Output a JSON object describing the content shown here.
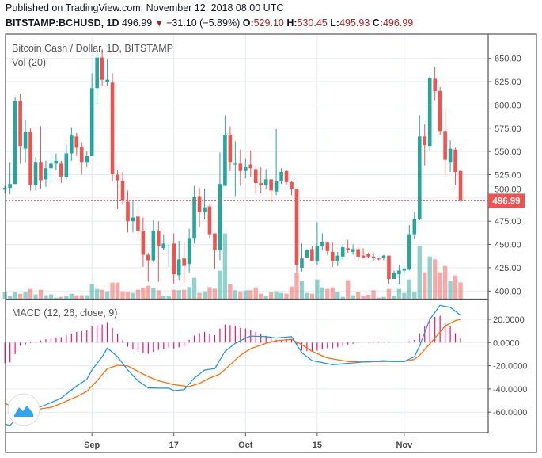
{
  "header": {
    "published": "Published on TradingView.com, November 12, 2018 08:00 UTC",
    "symbol": "BITSTAMP:BCHUSD, 1D",
    "last": "496.99",
    "change": "−31.10 (−5.89%)",
    "o_label": "O:",
    "o_value": "529.10",
    "h_label": "H:",
    "h_value": "530.45",
    "l_label": "L:",
    "l_value": "495.93",
    "c_label": "C:",
    "c_value": "496.99",
    "direction_icon": "triangle-down-icon"
  },
  "legend": {
    "title": "Bitcoin Cash / Dollar, 1D, BITSTAMP",
    "volume": "Vol (20)",
    "macd": "MACD (12, 26, close, 9)"
  },
  "last_price_label": "496.99",
  "colors": {
    "up": "#26a69a",
    "down": "#ef5350",
    "macd": "#2196f3",
    "signal": "#ff6d00",
    "histogram": "#ff0a68",
    "grid": "#e3ebf3"
  },
  "logo": "tradingview-logo-icon",
  "chart_data": [
    {
      "type": "candlestick",
      "title": "Bitcoin Cash / Dollar, 1D, BITSTAMP",
      "ylim": [
        395,
        660
      ],
      "y_ticks": [
        "400.00",
        "425.00",
        "450.00",
        "475.00",
        "500.00",
        "525.00",
        "550.00",
        "575.00",
        "600.00",
        "625.00",
        "650.00"
      ],
      "x_ticks": [
        {
          "date": "2018-09-01",
          "label": "Sep"
        },
        {
          "date": "2018-09-17",
          "label": "17"
        },
        {
          "date": "2018-10-01",
          "label": "Oct"
        },
        {
          "date": "2018-10-15",
          "label": "15"
        },
        {
          "date": "2018-11-01",
          "label": "Nov"
        }
      ],
      "grid": true,
      "columns": [
        "date",
        "open",
        "high",
        "low",
        "close",
        "volume_relative"
      ],
      "candles": [
        [
          "2018-08-15",
          509,
          513,
          505,
          511,
          24
        ],
        [
          "2018-08-16",
          511,
          538,
          504,
          515,
          10
        ],
        [
          "2018-08-17",
          515,
          608,
          515,
          604,
          25
        ],
        [
          "2018-08-18",
          604,
          612,
          537,
          556,
          19
        ],
        [
          "2018-08-19",
          553,
          584,
          538,
          571,
          25
        ],
        [
          "2018-08-20",
          571,
          575,
          508,
          514,
          37
        ],
        [
          "2018-08-21",
          514,
          544,
          508,
          538,
          16
        ],
        [
          "2018-08-22",
          538,
          577,
          510,
          519,
          34
        ],
        [
          "2018-08-23",
          520,
          540,
          512,
          532,
          13
        ],
        [
          "2018-08-24",
          532,
          547,
          517,
          537,
          16
        ],
        [
          "2018-08-25",
          537,
          548,
          530,
          540,
          4
        ],
        [
          "2018-08-26",
          537,
          540,
          516,
          523,
          7
        ],
        [
          "2018-08-27",
          522,
          557,
          520,
          548,
          11
        ],
        [
          "2018-08-28",
          548,
          576,
          540,
          567,
          19
        ],
        [
          "2018-08-29",
          566,
          570,
          545,
          554,
          13
        ],
        [
          "2018-08-30",
          555,
          560,
          525,
          538,
          13
        ],
        [
          "2018-08-31",
          538,
          550,
          533,
          545,
          13
        ],
        [
          "2018-09-01",
          545,
          634,
          545,
          618,
          55
        ],
        [
          "2018-09-02",
          618,
          660,
          601,
          651,
          37
        ],
        [
          "2018-09-03",
          651,
          660,
          620,
          627,
          34
        ],
        [
          "2018-09-04",
          625,
          649,
          620,
          627,
          28
        ],
        [
          "2018-09-05",
          624,
          634,
          518,
          526,
          61
        ],
        [
          "2018-09-06",
          525,
          530,
          488,
          519,
          61
        ],
        [
          "2018-09-07",
          518,
          528,
          493,
          497,
          28
        ],
        [
          "2018-09-08",
          496,
          508,
          463,
          475,
          27
        ],
        [
          "2018-09-09",
          475,
          497,
          463,
          479,
          22
        ],
        [
          "2018-09-10",
          480,
          489,
          457,
          465,
          34
        ],
        [
          "2018-09-11",
          465,
          479,
          426,
          439,
          42
        ],
        [
          "2018-09-12",
          439,
          441,
          410,
          433,
          49
        ],
        [
          "2018-09-13",
          433,
          476,
          431,
          465,
          40
        ],
        [
          "2018-09-14",
          464,
          475,
          410,
          448,
          32
        ],
        [
          "2018-09-15",
          446,
          461,
          444,
          451,
          9
        ],
        [
          "2018-09-16",
          448,
          450,
          426,
          449,
          11
        ],
        [
          "2018-09-17",
          451,
          462,
          408,
          418,
          34
        ],
        [
          "2018-09-18",
          417,
          454,
          412,
          434,
          32
        ],
        [
          "2018-09-19",
          435,
          453,
          409,
          427,
          34
        ],
        [
          "2018-09-20",
          429,
          467,
          420,
          457,
          44
        ],
        [
          "2018-09-21",
          457,
          513,
          451,
          501,
          79
        ],
        [
          "2018-09-22",
          502,
          511,
          469,
          485,
          22
        ],
        [
          "2018-09-23",
          485,
          510,
          477,
          490,
          28
        ],
        [
          "2018-09-24",
          491,
          493,
          457,
          461,
          44
        ],
        [
          "2018-09-25",
          462,
          462,
          424,
          444,
          38
        ],
        [
          "2018-09-26",
          444,
          549,
          433,
          515,
          106
        ],
        [
          "2018-09-27",
          513,
          589,
          513,
          568,
          247
        ],
        [
          "2018-09-28",
          568,
          577,
          529,
          538,
          55
        ],
        [
          "2018-09-29",
          536,
          561,
          502,
          537,
          32
        ],
        [
          "2018-09-30",
          537,
          552,
          513,
          529,
          28
        ],
        [
          "2018-10-01",
          529,
          542,
          521,
          533,
          31
        ],
        [
          "2018-10-02",
          536,
          551,
          522,
          532,
          32
        ],
        [
          "2018-10-03",
          531,
          533,
          505,
          516,
          43
        ],
        [
          "2018-10-04",
          516,
          533,
          505,
          514,
          19
        ],
        [
          "2018-10-05",
          514,
          531,
          509,
          520,
          10
        ],
        [
          "2018-10-06",
          520,
          520,
          495,
          508,
          25
        ],
        [
          "2018-10-07",
          507,
          574,
          503,
          518,
          28
        ],
        [
          "2018-10-08",
          518,
          532,
          515,
          528,
          22
        ],
        [
          "2018-10-09",
          529,
          530,
          514,
          517,
          19
        ],
        [
          "2018-10-10",
          517,
          518,
          503,
          510,
          46
        ],
        [
          "2018-10-11",
          510,
          510,
          420,
          428,
          97
        ],
        [
          "2018-10-12",
          425,
          451,
          421,
          435,
          67
        ],
        [
          "2018-10-13",
          436,
          445,
          436,
          444,
          22
        ],
        [
          "2018-10-14",
          445,
          448,
          432,
          432,
          19
        ],
        [
          "2018-10-15",
          432,
          474,
          428,
          448,
          73
        ],
        [
          "2018-10-16",
          448,
          462,
          444,
          453,
          43
        ],
        [
          "2018-10-17",
          452,
          453,
          439,
          443,
          37
        ],
        [
          "2018-10-18",
          442,
          452,
          426,
          432,
          43
        ],
        [
          "2018-10-19",
          432,
          442,
          427,
          438,
          25
        ],
        [
          "2018-10-20",
          437,
          450,
          434,
          447,
          7
        ],
        [
          "2018-10-21",
          446,
          455,
          441,
          444,
          70
        ],
        [
          "2018-10-22",
          442,
          450,
          439,
          445,
          13
        ],
        [
          "2018-10-23",
          445,
          447,
          433,
          437,
          25
        ],
        [
          "2018-10-24",
          438,
          446,
          435,
          436,
          10
        ],
        [
          "2018-10-25",
          440,
          441,
          435,
          437,
          15
        ],
        [
          "2018-10-26",
          437,
          441,
          432,
          436,
          32
        ],
        [
          "2018-10-27",
          435,
          436,
          433,
          434,
          4
        ],
        [
          "2018-10-28",
          436,
          439,
          433,
          438,
          7
        ],
        [
          "2018-10-29",
          438,
          438,
          408,
          413,
          37
        ],
        [
          "2018-10-30",
          413,
          422,
          413,
          420,
          10
        ],
        [
          "2018-10-31",
          418,
          428,
          407,
          422,
          37
        ],
        [
          "2018-11-01",
          422,
          425,
          420,
          424,
          22
        ],
        [
          "2018-11-02",
          423,
          471,
          422,
          461,
          73
        ],
        [
          "2018-11-03",
          461,
          485,
          456,
          477,
          25
        ],
        [
          "2018-11-04",
          477,
          589,
          476,
          566,
          199
        ],
        [
          "2018-11-05",
          566,
          579,
          535,
          557,
          100
        ],
        [
          "2018-11-06",
          556,
          631,
          551,
          629,
          160
        ],
        [
          "2018-11-07",
          628,
          641,
          605,
          615,
          149
        ],
        [
          "2018-11-08",
          615,
          619,
          568,
          572,
          100
        ],
        [
          "2018-11-09",
          572,
          595,
          523,
          541,
          124
        ],
        [
          "2018-11-10",
          538,
          562,
          528,
          553,
          67
        ],
        [
          "2018-11-11",
          552,
          554,
          514,
          528,
          88
        ],
        [
          "2018-11-12",
          529.1,
          530.45,
          495.93,
          496.99,
          62
        ]
      ],
      "last_price": 496.99
    },
    {
      "type": "line",
      "title": "MACD (12, 26, close, 9)",
      "ylim": [
        -75,
        35
      ],
      "y_ticks": [
        "20.0000",
        "0.0000",
        "-20.0000",
        "-40.0000",
        "-60.0000"
      ],
      "grid": true,
      "macd": [
        [
          "2018-08-15",
          -70.2
        ],
        [
          "2018-08-16",
          -71.5
        ],
        [
          "2018-08-18",
          -61
        ],
        [
          "2018-08-21",
          -57
        ],
        [
          "2018-08-23",
          -53.6
        ],
        [
          "2018-08-25",
          -49.9
        ],
        [
          "2018-08-26",
          -47.8
        ],
        [
          "2018-08-29",
          -37.5
        ],
        [
          "2018-08-31",
          -31.7
        ],
        [
          "2018-09-01",
          -23.7
        ],
        [
          "2018-09-03",
          -12.2
        ],
        [
          "2018-09-04",
          -4.8
        ],
        [
          "2018-09-06",
          -12.2
        ],
        [
          "2018-09-08",
          -23.7
        ],
        [
          "2018-09-10",
          -32.9
        ],
        [
          "2018-09-12",
          -39.1
        ],
        [
          "2018-09-14",
          -39.3
        ],
        [
          "2018-09-16",
          -39.3
        ],
        [
          "2018-09-17",
          -41.4
        ],
        [
          "2018-09-19",
          -40.7
        ],
        [
          "2018-09-21",
          -30.6
        ],
        [
          "2018-09-23",
          -23.7
        ],
        [
          "2018-09-25",
          -22.5
        ],
        [
          "2018-09-27",
          -7.6
        ],
        [
          "2018-09-29",
          -0.7
        ],
        [
          "2018-10-01",
          3.9
        ],
        [
          "2018-10-02",
          5.5
        ],
        [
          "2018-10-05",
          5.1
        ],
        [
          "2018-10-07",
          3.9
        ],
        [
          "2018-10-10",
          5.1
        ],
        [
          "2018-10-12",
          -8.7
        ],
        [
          "2018-10-14",
          -15.6
        ],
        [
          "2018-10-16",
          -17.3
        ],
        [
          "2018-10-18",
          -19.1
        ],
        [
          "2018-10-21",
          -17.9
        ],
        [
          "2018-10-24",
          -16.8
        ],
        [
          "2018-10-28",
          -15.6
        ],
        [
          "2018-10-30",
          -16.3
        ],
        [
          "2018-11-01",
          -16.3
        ],
        [
          "2018-11-03",
          -12.2
        ],
        [
          "2018-11-04",
          -3
        ],
        [
          "2018-11-06",
          20
        ],
        [
          "2018-11-08",
          32
        ],
        [
          "2018-11-10",
          30.4
        ],
        [
          "2018-11-12",
          23.5
        ]
      ],
      "signal": [
        [
          "2018-08-15",
          -52.4
        ],
        [
          "2018-08-18",
          -58.2
        ],
        [
          "2018-08-21",
          -57.7
        ],
        [
          "2018-08-24",
          -55.9
        ],
        [
          "2018-08-26",
          -52.4
        ],
        [
          "2018-08-29",
          -46.7
        ],
        [
          "2018-08-31",
          -42.1
        ],
        [
          "2018-09-02",
          -32.9
        ],
        [
          "2018-09-04",
          -22.5
        ],
        [
          "2018-09-06",
          -19.6
        ],
        [
          "2018-09-08",
          -20.2
        ],
        [
          "2018-09-10",
          -24.8
        ],
        [
          "2018-09-12",
          -29.4
        ],
        [
          "2018-09-14",
          -32.9
        ],
        [
          "2018-09-17",
          -36.3
        ],
        [
          "2018-09-20",
          -38
        ],
        [
          "2018-09-22",
          -35.2
        ],
        [
          "2018-09-24",
          -30.6
        ],
        [
          "2018-09-26",
          -27.1
        ],
        [
          "2018-09-28",
          -19.1
        ],
        [
          "2018-09-30",
          -11
        ],
        [
          "2018-10-02",
          -5.3
        ],
        [
          "2018-10-05",
          -0.7
        ],
        [
          "2018-10-07",
          1.6
        ],
        [
          "2018-10-10",
          2.8
        ],
        [
          "2018-10-12",
          -1.8
        ],
        [
          "2018-10-14",
          -7.6
        ],
        [
          "2018-10-17",
          -13.3
        ],
        [
          "2018-10-21",
          -16.3
        ],
        [
          "2018-10-24",
          -16.8
        ],
        [
          "2018-10-28",
          -16.3
        ],
        [
          "2018-11-01",
          -16.3
        ],
        [
          "2018-11-03",
          -14.5
        ],
        [
          "2018-11-04",
          -11
        ],
        [
          "2018-11-07",
          3.9
        ],
        [
          "2018-11-09",
          14.3
        ],
        [
          "2018-11-11",
          18.9
        ],
        [
          "2018-11-12",
          20
        ]
      ],
      "histogram": "macd minus signal"
    }
  ]
}
